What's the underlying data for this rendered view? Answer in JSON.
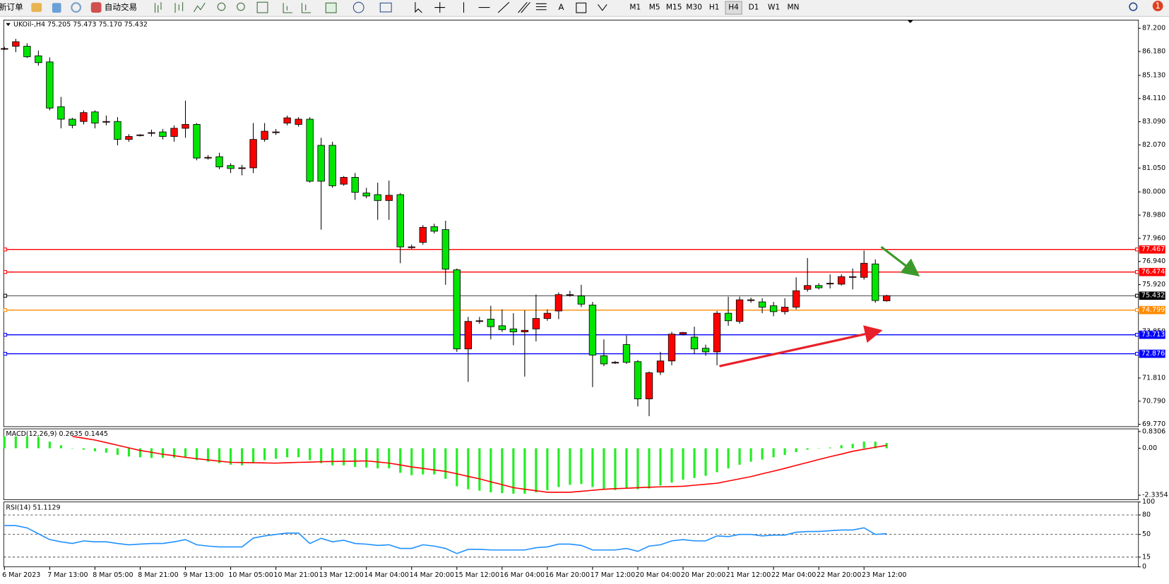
{
  "toolbar": {
    "new_order": "新订单",
    "auto_trading": "自动交易",
    "text_tool": "A",
    "timeframes": [
      "M1",
      "M5",
      "M15",
      "M30",
      "H1",
      "H4",
      "D1",
      "W1",
      "MN"
    ],
    "notifications": "1"
  },
  "chart_data": [
    {
      "type": "candlestick",
      "title": "UKOil-,H4  75.205 75.473 75.170 75.432",
      "categories": [
        "6 Mar 2023",
        null,
        null,
        null,
        "7 Mar 13:00",
        null,
        null,
        null,
        "8 Mar 05:00",
        null,
        null,
        null,
        "8 Mar 21:00",
        null,
        null,
        null,
        "9 Mar 13:00",
        null,
        null,
        null,
        "10 Mar 05:00",
        null,
        null,
        null,
        "10 Mar 21:00",
        null,
        null,
        null,
        "13 Mar 12:00",
        null,
        null,
        null,
        "14 Mar 04:00",
        null,
        null,
        null,
        "14 Mar 20:00",
        null,
        null,
        null,
        "15 Mar 12:00",
        null,
        null,
        null,
        "16 Mar 04:00",
        null,
        null,
        null,
        "16 Mar 20:00",
        null,
        null,
        null,
        "17 Mar 12:00",
        null,
        null,
        null,
        "20 Mar 04:00",
        null,
        null,
        null,
        "20 Mar 20:00",
        null,
        null,
        null,
        "21 Mar 12:00",
        null,
        null,
        null,
        "22 Mar 04:00",
        null,
        null,
        null,
        "22 Mar 20:00",
        null,
        null,
        null,
        "23 Mar 12:00",
        null,
        null
      ],
      "open": [
        86.31,
        86.41,
        86.41,
        85.99,
        85.72,
        83.75,
        83.2,
        83.1,
        83.52,
        83.1,
        83.1,
        82.31,
        82.51,
        82.61,
        82.64,
        82.44,
        82.8,
        82.97,
        81.52,
        81.55,
        81.16,
        81.06,
        81.06,
        82.31,
        82.64,
        83.03,
        82.97,
        83.2,
        82.05,
        82.05,
        80.34,
        80.64,
        79.95,
        79.88,
        79.62,
        79.88,
        77.58,
        77.78,
        78.47,
        78.34,
        76.57,
        73.09,
        74.33,
        74.4,
        74.11,
        73.97,
        73.84,
        73.97,
        74.43,
        74.76,
        75.48,
        75.42,
        75.02,
        72.79,
        72.5,
        73.28,
        72.53,
        70.89,
        72.07,
        72.56,
        73.74,
        73.61,
        73.12,
        72.96,
        74.66,
        74.3,
        75.25,
        75.16,
        74.99,
        74.73,
        74.93,
        75.71,
        75.88,
        75.98,
        75.94,
        76.27,
        76.24,
        76.83,
        75.205
      ],
      "high": [
        86.38,
        86.74,
        86.54,
        86.22,
        85.92,
        84.18,
        83.26,
        83.59,
        83.59,
        83.36,
        83.29,
        82.54,
        82.54,
        82.74,
        82.77,
        82.93,
        84.02,
        83.03,
        81.62,
        81.72,
        81.26,
        81.19,
        83.03,
        83.03,
        82.77,
        83.36,
        83.29,
        83.29,
        82.38,
        82.21,
        80.7,
        80.83,
        80.18,
        80.41,
        80.5,
        79.95,
        77.68,
        78.54,
        78.6,
        78.73,
        76.63,
        74.5,
        74.5,
        74.99,
        74.83,
        74.66,
        74.79,
        75.48,
        74.83,
        75.58,
        75.65,
        75.91,
        75.16,
        73.51,
        72.56,
        73.68,
        72.6,
        72.1,
        72.96,
        73.84,
        73.84,
        74.07,
        73.28,
        74.76,
        75.39,
        75.39,
        75.35,
        75.32,
        75.16,
        75.32,
        76.24,
        77.09,
        75.98,
        76.37,
        76.37,
        76.63,
        77.42,
        77.03,
        75.473
      ],
      "low": [
        86.25,
        86.15,
        85.89,
        85.56,
        83.59,
        82.8,
        82.8,
        82.97,
        82.8,
        82.93,
        82.05,
        82.21,
        82.44,
        82.44,
        82.31,
        82.21,
        82.38,
        81.39,
        81.42,
        81.0,
        80.83,
        80.73,
        80.83,
        82.21,
        82.51,
        82.93,
        82.87,
        80.41,
        78.34,
        80.18,
        80.27,
        79.65,
        79.72,
        78.77,
        78.77,
        76.86,
        77.49,
        77.68,
        78.17,
        75.91,
        72.96,
        71.64,
        74.2,
        73.51,
        73.84,
        73.25,
        71.87,
        73.42,
        74.33,
        74.4,
        75.39,
        74.93,
        71.41,
        72.33,
        72.43,
        72.43,
        70.56,
        70.13,
        71.94,
        72.37,
        73.68,
        72.86,
        72.79,
        72.37,
        74.11,
        74.2,
        75.12,
        74.66,
        74.53,
        74.6,
        74.83,
        75.61,
        75.71,
        75.75,
        75.88,
        75.71,
        76.14,
        75.12,
        75.17
      ],
      "close": [
        86.31,
        86.61,
        85.95,
        85.69,
        83.69,
        83.2,
        82.93,
        83.49,
        83.03,
        83.1,
        82.31,
        82.44,
        82.51,
        82.61,
        82.44,
        82.8,
        82.97,
        81.49,
        81.52,
        81.1,
        81.03,
        81.06,
        82.31,
        82.67,
        82.64,
        83.26,
        83.2,
        80.47,
        80.47,
        80.27,
        80.64,
        79.98,
        79.82,
        79.62,
        79.85,
        77.58,
        77.58,
        78.44,
        78.27,
        76.6,
        73.09,
        74.3,
        74.33,
        74.07,
        73.94,
        73.84,
        73.91,
        74.43,
        74.66,
        75.48,
        75.48,
        75.06,
        72.82,
        72.43,
        72.5,
        72.5,
        70.89,
        72.04,
        72.56,
        73.74,
        73.81,
        73.09,
        72.96,
        74.66,
        74.33,
        75.25,
        75.25,
        74.93,
        74.73,
        74.93,
        75.65,
        75.88,
        75.78,
        75.98,
        76.27,
        76.27,
        76.86,
        75.22,
        75.432
      ],
      "up_color": "#ff0000",
      "down_color": "#00e600",
      "ylim": [
        69.67,
        87.56
      ],
      "yticks": [
        {
          "value": 87.2,
          "label": "87.200"
        },
        {
          "value": 86.18,
          "label": "86.180"
        },
        {
          "value": 85.13,
          "label": "85.130"
        },
        {
          "value": 84.11,
          "label": "84.110"
        },
        {
          "value": 83.09,
          "label": "83.090"
        },
        {
          "value": 82.07,
          "label": "82.070"
        },
        {
          "value": 81.05,
          "label": "81.050"
        },
        {
          "value": 80,
          "label": "80.000"
        },
        {
          "value": 78.98,
          "label": "78.980"
        },
        {
          "value": 77.96,
          "label": "77.960"
        },
        {
          "value": 76.94,
          "label": "76.940"
        },
        {
          "value": 75.92,
          "label": "75.920"
        },
        {
          "value": 73.85,
          "label": "73.850"
        },
        {
          "value": 71.81,
          "label": "71.810"
        },
        {
          "value": 70.79,
          "label": "70.790"
        },
        {
          "value": 69.77,
          "label": "69.770"
        }
      ],
      "levels": [
        {
          "value": 77.467,
          "color": "#ff0000"
        },
        {
          "value": 76.474,
          "color": "#ff0000"
        },
        {
          "value": 75.432,
          "color": "#000000"
        },
        {
          "value": 74.799,
          "color": "#ff8c00"
        },
        {
          "value": 73.713,
          "color": "#0000ff"
        },
        {
          "value": 72.876,
          "color": "#0000ff"
        }
      ]
    },
    {
      "type": "macd",
      "title": "MACD(12,26,9) 0.2635 0.1445",
      "values": [
        0.59,
        0.59,
        0.59,
        0.56,
        0.33,
        0.15,
        -0.02,
        -0.07,
        -0.15,
        -0.22,
        -0.33,
        -0.41,
        -0.45,
        -0.48,
        -0.48,
        -0.48,
        -0.48,
        -0.59,
        -0.67,
        -0.74,
        -0.82,
        -0.85,
        -0.74,
        -0.59,
        -0.52,
        -0.45,
        -0.45,
        -0.59,
        -0.74,
        -0.85,
        -0.85,
        -0.93,
        -0.96,
        -1.0,
        -1.0,
        -1.22,
        -1.34,
        -1.3,
        -1.3,
        -1.52,
        -1.89,
        -2.04,
        -2.11,
        -2.19,
        -2.23,
        -2.26,
        -2.26,
        -2.19,
        -2.08,
        -1.93,
        -1.82,
        -1.78,
        -1.93,
        -2.04,
        -2.08,
        -2.0,
        -2.04,
        -2.0,
        -1.85,
        -1.71,
        -1.56,
        -1.48,
        -1.37,
        -1.19,
        -1.0,
        -0.82,
        -0.67,
        -0.56,
        -0.45,
        -0.33,
        -0.19,
        -0.07,
        0.0,
        0.04,
        0.15,
        0.22,
        0.33,
        0.33,
        0.2635
      ],
      "signal": [
        null,
        null,
        null,
        null,
        null,
        null,
        0.59,
        0.5,
        0.41,
        0.28,
        0.15,
        0.02,
        -0.11,
        -0.2,
        -0.3,
        -0.37,
        -0.45,
        -0.52,
        -0.58,
        -0.64,
        -0.7,
        -0.71,
        -0.72,
        -0.73,
        -0.74,
        -0.72,
        -0.7,
        -0.69,
        -0.67,
        -0.66,
        -0.65,
        -0.64,
        -0.63,
        -0.68,
        -0.74,
        -0.83,
        -0.93,
        -1.0,
        -1.08,
        -1.15,
        -1.27,
        -1.4,
        -1.52,
        -1.67,
        -1.81,
        -1.96,
        -2.04,
        -2.11,
        -2.19,
        -2.19,
        -2.19,
        -2.14,
        -2.09,
        -2.04,
        -2.01,
        -1.99,
        -1.96,
        -1.94,
        -1.92,
        -1.91,
        -1.89,
        -1.84,
        -1.79,
        -1.74,
        -1.63,
        -1.52,
        -1.41,
        -1.27,
        -1.14,
        -1.0,
        -0.85,
        -0.71,
        -0.56,
        -0.42,
        -0.29,
        -0.15,
        -0.05,
        0.05,
        0.1445
      ],
      "color": "#22ee22",
      "signal_color": "#ff0000",
      "ylim": [
        -2.56,
        0.965
      ],
      "yticks": [
        0.8306,
        {
          "value": 0,
          "label": "0.00"
        },
        -2.3354
      ]
    },
    {
      "type": "line",
      "title": "RSI(14) 51.1129",
      "values": [
        63.6,
        63.6,
        60,
        51,
        42,
        38.6,
        36,
        40,
        38.6,
        38.6,
        36,
        34,
        35,
        36,
        36,
        38.6,
        42,
        34,
        32,
        30.7,
        30.7,
        30.7,
        44.3,
        47.7,
        50,
        52,
        52,
        36,
        44,
        38.6,
        41,
        36,
        35,
        33,
        34,
        28.4,
        28.4,
        34,
        32,
        28.4,
        20.5,
        27,
        27,
        26,
        26,
        26,
        26,
        29.5,
        30.7,
        35,
        35,
        33,
        26,
        26,
        26,
        28.4,
        23.9,
        32,
        34,
        40,
        42,
        40,
        40,
        47.7,
        46.6,
        50,
        50,
        47.7,
        48.9,
        48.9,
        53.4,
        54.5,
        54.5,
        55.7,
        56.8,
        56.8,
        60.2,
        50,
        51.11
      ],
      "color": "#1e90ff",
      "ylim": [
        0,
        100
      ],
      "yticks": [
        100,
        80,
        50,
        15,
        0
      ]
    }
  ]
}
